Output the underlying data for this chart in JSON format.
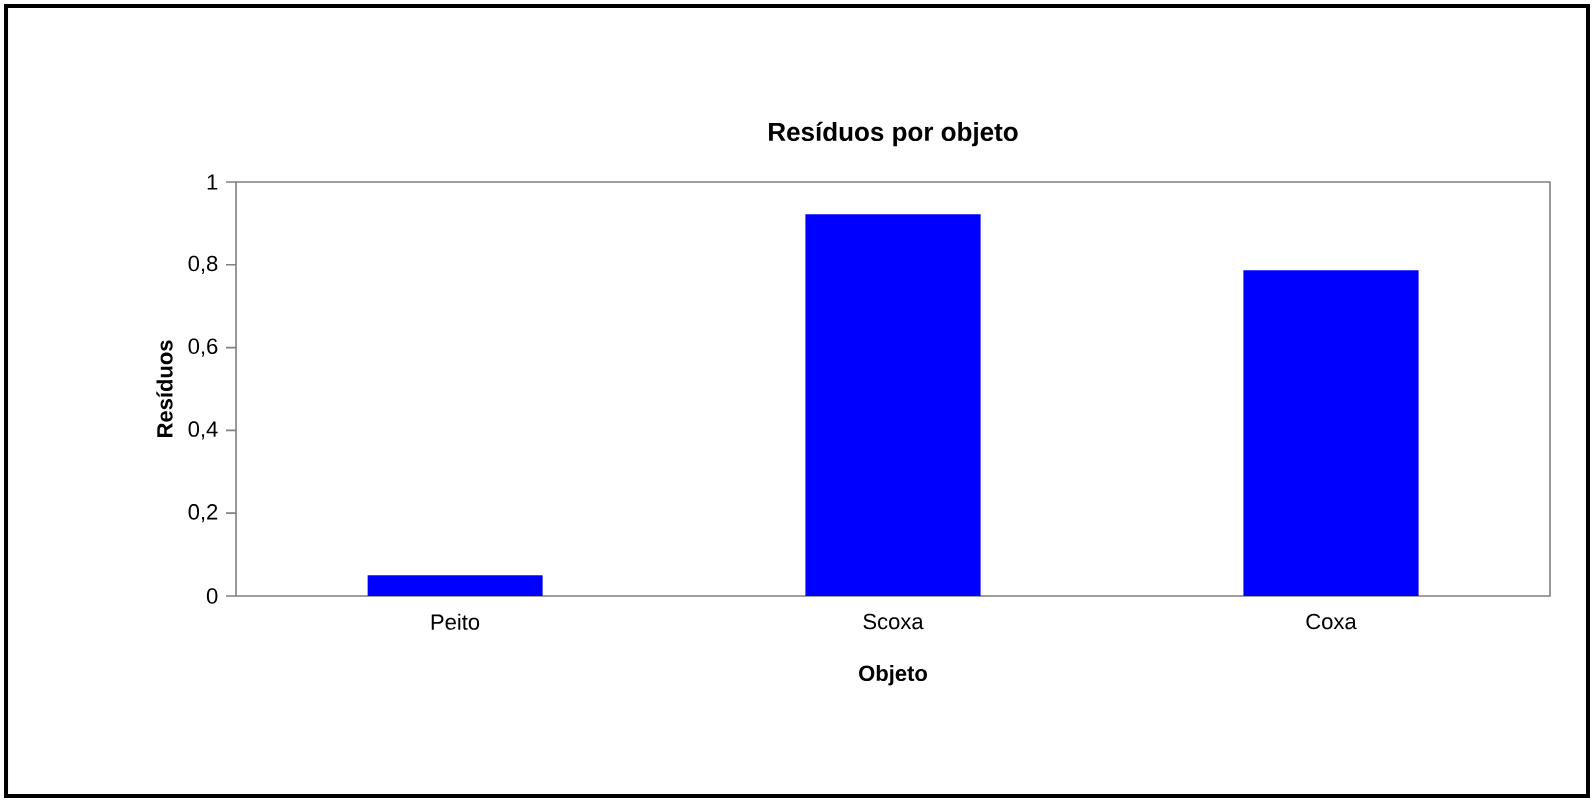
{
  "chart_data": {
    "type": "bar",
    "title": "Resíduos por objeto",
    "xlabel": "Objeto",
    "ylabel": "Resíduos",
    "categories": [
      "Peito",
      "Scoxa",
      "Coxa"
    ],
    "values": [
      0.05,
      0.922,
      0.787
    ],
    "color": "#0000ff",
    "ylim": [
      0,
      1
    ],
    "yticks": [
      0,
      {
        "value": 0.2,
        "label": "0,2"
      },
      {
        "value": 0.4,
        "label": "0,4"
      },
      {
        "value": 0.6,
        "label": "0,6"
      },
      {
        "value": 0.8,
        "label": "0,8"
      },
      1
    ],
    "grid": false
  }
}
